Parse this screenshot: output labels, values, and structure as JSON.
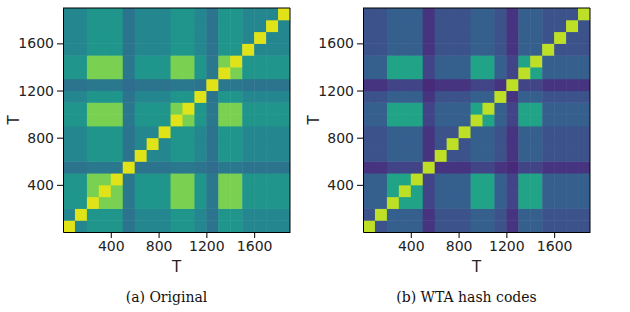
{
  "chart_data": [
    {
      "type": "heatmap",
      "title": "(a) Original",
      "x_label": "T",
      "y_label": "T",
      "color": "viridis",
      "xlim": [
        0,
        1900
      ],
      "ylim": [
        0,
        1900
      ],
      "xticks": [
        400,
        800,
        1200,
        1600
      ],
      "yticks": [
        400,
        800,
        1200,
        1600
      ],
      "zlim": [
        0,
        1
      ],
      "x_edges": [
        0,
        100,
        200,
        300,
        400,
        500,
        600,
        700,
        800,
        900,
        1000,
        1100,
        1200,
        1300,
        1400,
        1500,
        1600,
        1700,
        1800,
        1900
      ],
      "y_edges": [
        0,
        100,
        200,
        300,
        400,
        500,
        600,
        700,
        800,
        900,
        1000,
        1100,
        1200,
        1300,
        1400,
        1500,
        1600,
        1700,
        1800,
        1900
      ],
      "values": [
        [
          0.95,
          0.46,
          0.52,
          0.52,
          0.52,
          0.38,
          0.46,
          0.46,
          0.46,
          0.52,
          0.52,
          0.46,
          0.38,
          0.52,
          0.52,
          0.46,
          0.46,
          0.46,
          0.46
        ],
        [
          0.46,
          0.95,
          0.52,
          0.52,
          0.52,
          0.38,
          0.46,
          0.46,
          0.46,
          0.52,
          0.52,
          0.46,
          0.38,
          0.52,
          0.52,
          0.46,
          0.46,
          0.46,
          0.46
        ],
        [
          0.52,
          0.52,
          0.95,
          0.8,
          0.8,
          0.4,
          0.52,
          0.52,
          0.52,
          0.8,
          0.8,
          0.52,
          0.4,
          0.8,
          0.8,
          0.52,
          0.52,
          0.52,
          0.52
        ],
        [
          0.52,
          0.52,
          0.8,
          0.95,
          0.8,
          0.4,
          0.52,
          0.52,
          0.52,
          0.8,
          0.8,
          0.52,
          0.4,
          0.8,
          0.8,
          0.52,
          0.52,
          0.52,
          0.52
        ],
        [
          0.52,
          0.52,
          0.8,
          0.8,
          0.95,
          0.4,
          0.52,
          0.52,
          0.52,
          0.8,
          0.8,
          0.52,
          0.4,
          0.8,
          0.8,
          0.52,
          0.52,
          0.52,
          0.52
        ],
        [
          0.38,
          0.38,
          0.4,
          0.4,
          0.4,
          0.95,
          0.38,
          0.38,
          0.38,
          0.4,
          0.4,
          0.38,
          0.35,
          0.4,
          0.4,
          0.38,
          0.38,
          0.38,
          0.38
        ],
        [
          0.46,
          0.46,
          0.52,
          0.52,
          0.52,
          0.38,
          0.95,
          0.46,
          0.46,
          0.52,
          0.52,
          0.46,
          0.38,
          0.52,
          0.52,
          0.46,
          0.46,
          0.46,
          0.46
        ],
        [
          0.46,
          0.46,
          0.52,
          0.52,
          0.52,
          0.38,
          0.46,
          0.95,
          0.46,
          0.52,
          0.52,
          0.46,
          0.38,
          0.52,
          0.52,
          0.46,
          0.46,
          0.46,
          0.46
        ],
        [
          0.46,
          0.46,
          0.52,
          0.52,
          0.52,
          0.38,
          0.46,
          0.46,
          0.95,
          0.52,
          0.52,
          0.46,
          0.38,
          0.52,
          0.52,
          0.46,
          0.46,
          0.46,
          0.46
        ],
        [
          0.52,
          0.52,
          0.8,
          0.8,
          0.8,
          0.4,
          0.52,
          0.52,
          0.52,
          0.95,
          0.8,
          0.52,
          0.4,
          0.8,
          0.8,
          0.52,
          0.52,
          0.52,
          0.52
        ],
        [
          0.52,
          0.52,
          0.8,
          0.8,
          0.8,
          0.4,
          0.52,
          0.52,
          0.52,
          0.8,
          0.95,
          0.52,
          0.4,
          0.8,
          0.8,
          0.52,
          0.52,
          0.52,
          0.52
        ],
        [
          0.46,
          0.46,
          0.52,
          0.52,
          0.52,
          0.38,
          0.46,
          0.46,
          0.46,
          0.52,
          0.52,
          0.95,
          0.38,
          0.52,
          0.52,
          0.46,
          0.46,
          0.46,
          0.46
        ],
        [
          0.38,
          0.38,
          0.4,
          0.4,
          0.4,
          0.35,
          0.38,
          0.38,
          0.38,
          0.4,
          0.4,
          0.38,
          0.95,
          0.4,
          0.4,
          0.38,
          0.38,
          0.38,
          0.38
        ],
        [
          0.52,
          0.52,
          0.8,
          0.8,
          0.8,
          0.4,
          0.52,
          0.52,
          0.52,
          0.8,
          0.8,
          0.52,
          0.4,
          0.95,
          0.8,
          0.52,
          0.52,
          0.52,
          0.52
        ],
        [
          0.52,
          0.52,
          0.8,
          0.8,
          0.8,
          0.4,
          0.52,
          0.52,
          0.52,
          0.8,
          0.8,
          0.52,
          0.4,
          0.8,
          0.95,
          0.52,
          0.52,
          0.52,
          0.52
        ],
        [
          0.46,
          0.46,
          0.52,
          0.52,
          0.52,
          0.38,
          0.46,
          0.46,
          0.46,
          0.52,
          0.52,
          0.46,
          0.38,
          0.52,
          0.52,
          0.95,
          0.46,
          0.46,
          0.46
        ],
        [
          0.46,
          0.46,
          0.52,
          0.52,
          0.52,
          0.38,
          0.46,
          0.46,
          0.46,
          0.52,
          0.52,
          0.46,
          0.38,
          0.52,
          0.52,
          0.46,
          0.95,
          0.46,
          0.46
        ],
        [
          0.46,
          0.46,
          0.52,
          0.52,
          0.52,
          0.38,
          0.46,
          0.46,
          0.46,
          0.52,
          0.52,
          0.46,
          0.38,
          0.52,
          0.52,
          0.46,
          0.46,
          0.95,
          0.46
        ],
        [
          0.46,
          0.46,
          0.52,
          0.52,
          0.52,
          0.38,
          0.46,
          0.46,
          0.46,
          0.52,
          0.52,
          0.46,
          0.38,
          0.52,
          0.52,
          0.46,
          0.46,
          0.46,
          0.95
        ]
      ]
    },
    {
      "type": "heatmap",
      "title": "(b) WTA hash codes",
      "x_label": "T",
      "y_label": "T",
      "color": "viridis",
      "xlim": [
        0,
        1900
      ],
      "ylim": [
        0,
        1900
      ],
      "xticks": [
        400,
        800,
        1200,
        1600
      ],
      "yticks": [
        400,
        800,
        1200,
        1600
      ],
      "zlim": [
        0,
        1
      ],
      "x_edges": [
        0,
        100,
        200,
        300,
        400,
        500,
        600,
        700,
        800,
        900,
        1000,
        1100,
        1200,
        1300,
        1400,
        1500,
        1600,
        1700,
        1800,
        1900
      ],
      "y_edges": [
        0,
        100,
        200,
        300,
        400,
        500,
        600,
        700,
        800,
        900,
        1000,
        1100,
        1200,
        1300,
        1400,
        1500,
        1600,
        1700,
        1800,
        1900
      ],
      "values": [
        [
          0.9,
          0.25,
          0.3,
          0.3,
          0.3,
          0.15,
          0.25,
          0.25,
          0.25,
          0.3,
          0.3,
          0.25,
          0.15,
          0.3,
          0.3,
          0.25,
          0.25,
          0.25,
          0.25
        ],
        [
          0.25,
          0.9,
          0.3,
          0.3,
          0.3,
          0.15,
          0.25,
          0.25,
          0.25,
          0.3,
          0.3,
          0.25,
          0.15,
          0.3,
          0.3,
          0.25,
          0.25,
          0.25,
          0.25
        ],
        [
          0.3,
          0.3,
          0.9,
          0.58,
          0.58,
          0.2,
          0.3,
          0.3,
          0.3,
          0.58,
          0.58,
          0.3,
          0.2,
          0.58,
          0.58,
          0.3,
          0.3,
          0.3,
          0.3
        ],
        [
          0.3,
          0.3,
          0.58,
          0.9,
          0.58,
          0.2,
          0.3,
          0.3,
          0.3,
          0.58,
          0.58,
          0.3,
          0.2,
          0.58,
          0.58,
          0.3,
          0.3,
          0.3,
          0.3
        ],
        [
          0.3,
          0.3,
          0.58,
          0.58,
          0.9,
          0.2,
          0.3,
          0.3,
          0.3,
          0.58,
          0.58,
          0.3,
          0.2,
          0.58,
          0.58,
          0.3,
          0.3,
          0.3,
          0.3
        ],
        [
          0.15,
          0.15,
          0.2,
          0.2,
          0.2,
          0.9,
          0.15,
          0.15,
          0.15,
          0.2,
          0.2,
          0.15,
          0.12,
          0.2,
          0.2,
          0.15,
          0.15,
          0.15,
          0.15
        ],
        [
          0.25,
          0.25,
          0.3,
          0.3,
          0.3,
          0.15,
          0.9,
          0.25,
          0.25,
          0.3,
          0.3,
          0.25,
          0.15,
          0.3,
          0.3,
          0.25,
          0.25,
          0.25,
          0.25
        ],
        [
          0.25,
          0.25,
          0.3,
          0.3,
          0.3,
          0.15,
          0.25,
          0.9,
          0.25,
          0.3,
          0.3,
          0.25,
          0.15,
          0.3,
          0.3,
          0.25,
          0.25,
          0.25,
          0.25
        ],
        [
          0.25,
          0.25,
          0.3,
          0.3,
          0.3,
          0.15,
          0.25,
          0.25,
          0.9,
          0.3,
          0.3,
          0.25,
          0.15,
          0.3,
          0.3,
          0.25,
          0.25,
          0.25,
          0.25
        ],
        [
          0.3,
          0.3,
          0.58,
          0.58,
          0.58,
          0.2,
          0.3,
          0.3,
          0.3,
          0.9,
          0.58,
          0.3,
          0.2,
          0.58,
          0.58,
          0.3,
          0.3,
          0.3,
          0.3
        ],
        [
          0.3,
          0.3,
          0.58,
          0.58,
          0.58,
          0.2,
          0.3,
          0.3,
          0.3,
          0.58,
          0.9,
          0.3,
          0.2,
          0.58,
          0.58,
          0.3,
          0.3,
          0.3,
          0.3
        ],
        [
          0.25,
          0.25,
          0.3,
          0.3,
          0.3,
          0.15,
          0.25,
          0.25,
          0.25,
          0.3,
          0.3,
          0.9,
          0.15,
          0.3,
          0.3,
          0.25,
          0.25,
          0.25,
          0.25
        ],
        [
          0.15,
          0.15,
          0.2,
          0.2,
          0.2,
          0.12,
          0.15,
          0.15,
          0.15,
          0.2,
          0.2,
          0.15,
          0.9,
          0.2,
          0.2,
          0.15,
          0.15,
          0.15,
          0.15
        ],
        [
          0.3,
          0.3,
          0.58,
          0.58,
          0.58,
          0.2,
          0.3,
          0.3,
          0.3,
          0.58,
          0.58,
          0.3,
          0.2,
          0.9,
          0.58,
          0.3,
          0.3,
          0.3,
          0.3
        ],
        [
          0.3,
          0.3,
          0.58,
          0.58,
          0.58,
          0.2,
          0.3,
          0.3,
          0.3,
          0.58,
          0.58,
          0.3,
          0.2,
          0.58,
          0.9,
          0.3,
          0.3,
          0.3,
          0.3
        ],
        [
          0.25,
          0.25,
          0.3,
          0.3,
          0.3,
          0.15,
          0.25,
          0.25,
          0.25,
          0.3,
          0.3,
          0.25,
          0.15,
          0.3,
          0.3,
          0.9,
          0.25,
          0.25,
          0.25
        ],
        [
          0.25,
          0.25,
          0.3,
          0.3,
          0.3,
          0.15,
          0.25,
          0.25,
          0.25,
          0.3,
          0.3,
          0.25,
          0.15,
          0.3,
          0.3,
          0.25,
          0.9,
          0.25,
          0.25
        ],
        [
          0.25,
          0.25,
          0.3,
          0.3,
          0.3,
          0.15,
          0.25,
          0.25,
          0.25,
          0.3,
          0.3,
          0.25,
          0.15,
          0.3,
          0.3,
          0.25,
          0.25,
          0.9,
          0.25
        ],
        [
          0.25,
          0.25,
          0.3,
          0.3,
          0.3,
          0.15,
          0.25,
          0.25,
          0.25,
          0.3,
          0.3,
          0.25,
          0.15,
          0.3,
          0.3,
          0.25,
          0.25,
          0.25,
          0.9
        ]
      ]
    }
  ]
}
